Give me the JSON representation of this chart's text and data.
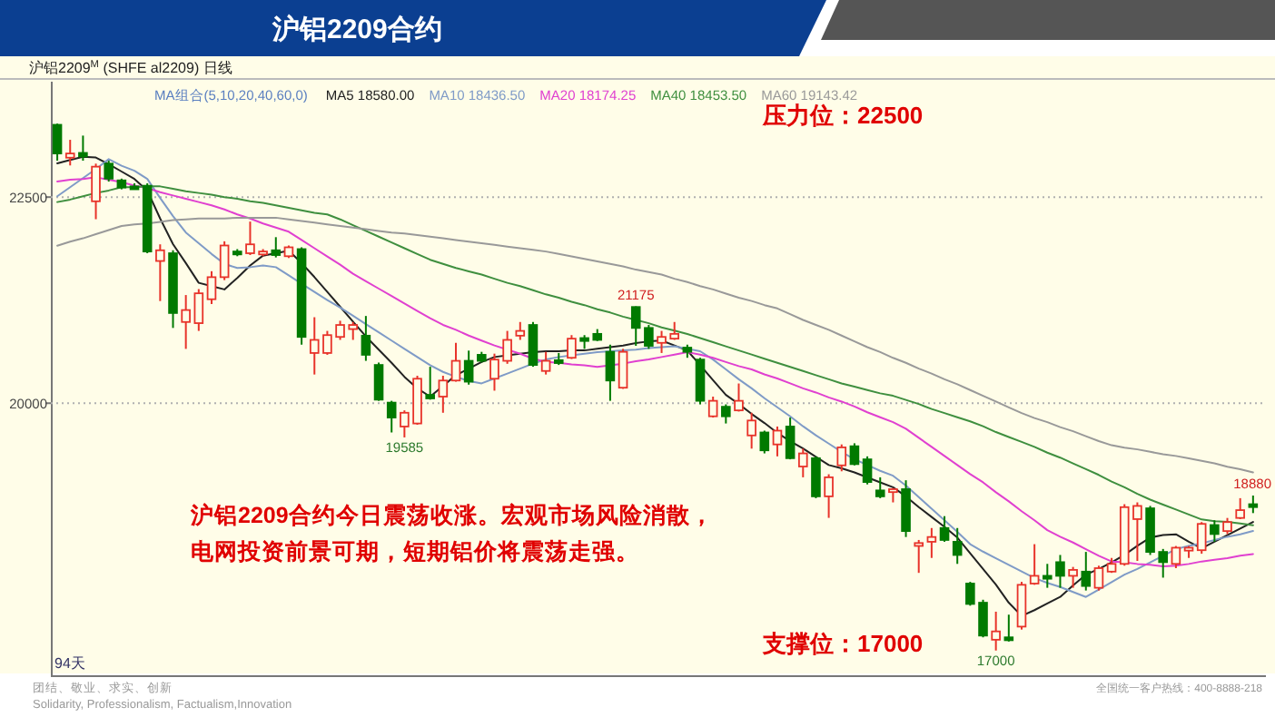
{
  "chart_data": {
    "type": "candlestick",
    "title": "沪铝2209合约",
    "subtitle": "沪铝2209$^{M}$ (SHFE al2209) 日线",
    "categories": [
      null,
      null,
      null,
      null,
      null,
      null,
      null,
      null,
      null,
      null,
      null,
      null,
      null,
      null,
      null,
      null,
      null,
      null,
      null,
      null,
      null,
      null,
      null,
      null,
      null,
      null,
      null,
      null,
      null,
      null,
      null,
      null,
      null,
      null,
      null,
      null,
      null,
      null,
      null,
      null,
      null,
      null,
      null,
      null,
      null,
      null,
      null,
      null,
      null,
      null,
      null,
      null,
      null,
      null,
      null,
      null,
      null,
      null,
      null,
      null,
      null,
      null,
      null,
      null,
      null,
      null,
      null,
      null,
      null,
      null,
      null,
      null,
      null,
      null,
      null,
      null,
      null,
      null,
      null,
      null,
      null,
      null,
      null,
      null,
      null,
      null,
      null,
      null,
      null,
      null,
      null,
      null,
      null,
      null
    ],
    "ohlc": [
      [
        23377,
        23391,
        22942,
        23029
      ],
      [
        22978,
        23195,
        22884,
        23029
      ],
      [
        23036,
        23246,
        22942,
        22993
      ],
      [
        22449,
        22906,
        22232,
        22869
      ],
      [
        22906,
        22942,
        22688,
        22724
      ],
      [
        22703,
        22724,
        22594,
        22616
      ],
      [
        22630,
        22667,
        22594,
        22616
      ],
      [
        22638,
        22667,
        21819,
        21840
      ],
      [
        21725,
        21927,
        21239,
        21855
      ],
      [
        21819,
        21855,
        20913,
        21094
      ],
      [
        20985,
        21312,
        20659,
        21130
      ],
      [
        20971,
        21384,
        20877,
        21333
      ],
      [
        21261,
        21601,
        21203,
        21529
      ],
      [
        21529,
        21964,
        21493,
        21913
      ],
      [
        21840,
        21869,
        21783,
        21819
      ],
      [
        21819,
        22203,
        21797,
        21927
      ],
      [
        21811,
        21869,
        21783,
        21840
      ],
      [
        21855,
        22014,
        21768,
        21797
      ],
      [
        21783,
        21913,
        21761,
        21891
      ],
      [
        21869,
        21891,
        20710,
        20804
      ],
      [
        20609,
        21043,
        20348,
        20768
      ],
      [
        20609,
        20877,
        20587,
        20826
      ],
      [
        20804,
        21000,
        20768,
        20949
      ],
      [
        20899,
        20985,
        20768,
        20949
      ],
      [
        20819,
        21058,
        20514,
        20587
      ],
      [
        20464,
        20493,
        20029,
        20043
      ],
      [
        20007,
        20029,
        19645,
        19826
      ],
      [
        19717,
        19913,
        19585,
        19884
      ],
      [
        19754,
        20333,
        19739,
        20297
      ],
      [
        20101,
        20442,
        20043,
        20058
      ],
      [
        20080,
        20333,
        19884,
        20275
      ],
      [
        20275,
        20732,
        20261,
        20514
      ],
      [
        20514,
        20638,
        20225,
        20261
      ],
      [
        20587,
        20623,
        20493,
        20514
      ],
      [
        20297,
        20601,
        20152,
        20529
      ],
      [
        20514,
        20877,
        20478,
        20768
      ],
      [
        20819,
        20985,
        20768,
        20877
      ],
      [
        20949,
        20985,
        20442,
        20464
      ],
      [
        20391,
        20623,
        20348,
        20514
      ],
      [
        20522,
        20609,
        20464,
        20507
      ],
      [
        20551,
        20826,
        20536,
        20783
      ],
      [
        20790,
        20826,
        20659,
        20768
      ],
      [
        20841,
        20899,
        20754,
        20768
      ],
      [
        20623,
        20710,
        20029,
        20275
      ],
      [
        20188,
        20659,
        20174,
        20623
      ],
      [
        21167,
        21175,
        20696,
        20913
      ],
      [
        20913,
        20949,
        20659,
        20696
      ],
      [
        20732,
        20877,
        20609,
        20804
      ],
      [
        20783,
        20985,
        20768,
        20841
      ],
      [
        20674,
        20710,
        20551,
        20623
      ],
      [
        20529,
        20551,
        19986,
        20029
      ],
      [
        19841,
        20080,
        19826,
        20029
      ],
      [
        19957,
        19986,
        19754,
        19841
      ],
      [
        19913,
        20239,
        19899,
        20029
      ],
      [
        19609,
        19884,
        19449,
        19790
      ],
      [
        19645,
        19667,
        19391,
        19428
      ],
      [
        19500,
        19717,
        19355,
        19667
      ],
      [
        19717,
        19826,
        19319,
        19333
      ],
      [
        19232,
        19449,
        19101,
        19391
      ],
      [
        19333,
        19355,
        18848,
        18870
      ],
      [
        18870,
        19138,
        18609,
        19101
      ],
      [
        19246,
        19500,
        19174,
        19464
      ],
      [
        19478,
        19514,
        19246,
        19261
      ],
      [
        19319,
        19355,
        19015,
        19044
      ],
      [
        18942,
        19101,
        18848,
        18870
      ],
      [
        18942,
        18971,
        18797,
        18957
      ],
      [
        18957,
        19065,
        18377,
        18449
      ],
      [
        18290,
        18341,
        17942,
        18304
      ],
      [
        18319,
        18486,
        18123,
        18377
      ],
      [
        18486,
        18630,
        18319,
        18341
      ],
      [
        18319,
        18486,
        18051,
        18159
      ],
      [
        17812,
        17833,
        17544,
        17565
      ],
      [
        17580,
        17616,
        17160,
        17181
      ],
      [
        17131,
        17471,
        17000,
        17232
      ],
      [
        17160,
        17435,
        17109,
        17145
      ],
      [
        17290,
        17833,
        17254,
        17797
      ],
      [
        17812,
        18290,
        17797,
        17906
      ],
      [
        17906,
        18051,
        17761,
        17884
      ],
      [
        18072,
        18159,
        17761,
        17906
      ],
      [
        17906,
        18014,
        17761,
        17978
      ],
      [
        17957,
        18196,
        17728,
        17783
      ],
      [
        17761,
        18029,
        17728,
        17999
      ],
      [
        17957,
        18123,
        17942,
        18051
      ],
      [
        18051,
        18775,
        18029,
        18739
      ],
      [
        18594,
        18797,
        18087,
        18754
      ],
      [
        18725,
        18754,
        18159,
        18196
      ],
      [
        18196,
        18232,
        17884,
        18072
      ],
      [
        18051,
        18268,
        17999,
        18247
      ],
      [
        18232,
        18268,
        18123,
        18247
      ],
      [
        18217,
        18558,
        18174,
        18536
      ],
      [
        18522,
        18580,
        18319,
        18413
      ],
      [
        18449,
        18608,
        18413,
        18558
      ],
      [
        18608,
        18848,
        18594,
        18703
      ],
      [
        18775,
        18880,
        18667,
        18754
      ]
    ],
    "colors": [
      "#007a00",
      "#e8332a",
      "#007a00",
      "#e8332a",
      "#007a00",
      "#007a00",
      "#007a00",
      "#007a00",
      "#e8332a",
      "#007a00",
      "#e8332a",
      "#e8332a",
      "#e8332a",
      "#e8332a",
      "#007a00",
      "#e8332a",
      "#e8332a",
      "#007a00",
      "#e8332a",
      "#007a00",
      "#e8332a",
      "#e8332a",
      "#e8332a",
      "#e8332a",
      "#007a00",
      "#007a00",
      "#007a00",
      "#e8332a",
      "#e8332a",
      "#007a00",
      "#e8332a",
      "#e8332a",
      "#007a00",
      "#007a00",
      "#e8332a",
      "#e8332a",
      "#e8332a",
      "#007a00",
      "#e8332a",
      "#007a00",
      "#e8332a",
      "#007a00",
      "#007a00",
      "#007a00",
      "#e8332a",
      "#007a00",
      "#007a00",
      "#e8332a",
      "#e8332a",
      "#007a00",
      "#007a00",
      "#e8332a",
      "#007a00",
      "#e8332a",
      "#e8332a",
      "#007a00",
      "#e8332a",
      "#007a00",
      "#e8332a",
      "#007a00",
      "#e8332a",
      "#e8332a",
      "#007a00",
      "#007a00",
      "#007a00",
      "#e8332a",
      "#007a00",
      "#e8332a",
      "#e8332a",
      "#007a00",
      "#007a00",
      "#007a00",
      "#007a00",
      "#e8332a",
      "#007a00",
      "#e8332a",
      "#e8332a",
      "#007a00",
      "#007a00",
      "#e8332a",
      "#007a00",
      "#e8332a",
      "#e8332a",
      "#e8332a",
      "#e8332a",
      "#007a00",
      "#007a00",
      "#e8332a",
      "#e8332a",
      "#e8332a",
      "#007a00",
      "#e8332a",
      "#e8332a",
      "#007a00"
    ],
    "series": [
      {
        "type": "line",
        "name": "MA5 18580.00",
        "color": "#222222",
        "values": [
          22910,
          22950,
          22990,
          22980,
          22900,
          22810,
          22720,
          22580,
          22240,
          21930,
          21700,
          21460,
          21420,
          21380,
          21520,
          21670,
          21790,
          21820,
          21850,
          21700,
          21530,
          21350,
          21170,
          20990,
          20810,
          20650,
          20490,
          20320,
          20180,
          20080,
          20210,
          20340,
          20420,
          20500,
          20560,
          20580,
          20600,
          20620,
          20630,
          20630,
          20640,
          20640,
          20660,
          20680,
          20700,
          20730,
          20750,
          20760,
          20700,
          20640,
          20460,
          20280,
          20100,
          19990,
          19870,
          19760,
          19640,
          19540,
          19450,
          19350,
          19250,
          19210,
          19160,
          19100,
          19040,
          18980,
          18870,
          18740,
          18620,
          18500,
          18370,
          18180,
          17990,
          17800,
          17580,
          17420,
          17490,
          17570,
          17650,
          17790,
          17920,
          17990,
          18070,
          18160,
          18270,
          18370,
          18400,
          18410,
          18320,
          18240,
          18320,
          18400,
          18480,
          18560
        ]
      },
      {
        "type": "line",
        "name": "MA10 18436.50",
        "color": "#7f9bc7",
        "values": [
          22510,
          22620,
          22730,
          22840,
          22960,
          22880,
          22820,
          22720,
          22490,
          22270,
          22070,
          21940,
          21810,
          21690,
          21640,
          21650,
          21670,
          21650,
          21550,
          21450,
          21350,
          21250,
          21160,
          21060,
          20960,
          20860,
          20760,
          20660,
          20560,
          20460,
          20380,
          20320,
          20270,
          20240,
          20300,
          20360,
          20420,
          20480,
          20530,
          20560,
          20580,
          20600,
          20620,
          20630,
          20640,
          20650,
          20670,
          20680,
          20690,
          20660,
          20630,
          20530,
          20410,
          20290,
          20180,
          20060,
          19950,
          19840,
          19720,
          19610,
          19510,
          19410,
          19320,
          19250,
          19180,
          19120,
          19000,
          18860,
          18720,
          18580,
          18440,
          18290,
          18200,
          18120,
          18040,
          17960,
          17880,
          17820,
          17770,
          17710,
          17650,
          17740,
          17830,
          17920,
          17990,
          18070,
          18150,
          18230,
          18270,
          18300,
          18340,
          18380,
          18410,
          18450
        ]
      },
      {
        "type": "line",
        "name": "MA20 18174.25",
        "color": "#e040d0",
        "values": [
          22690,
          22710,
          22720,
          22740,
          22710,
          22680,
          22640,
          22610,
          22560,
          22520,
          22480,
          22440,
          22400,
          22350,
          22290,
          22240,
          22180,
          22130,
          22080,
          21980,
          21880,
          21780,
          21680,
          21570,
          21480,
          21390,
          21300,
          21210,
          21120,
          21030,
          20950,
          20890,
          20820,
          20760,
          20700,
          20650,
          20600,
          20540,
          20500,
          20490,
          20470,
          20460,
          20440,
          20460,
          20480,
          20510,
          20530,
          20560,
          20590,
          20620,
          20590,
          20550,
          20500,
          20450,
          20410,
          20350,
          20300,
          20240,
          20180,
          20130,
          20070,
          20020,
          19960,
          19890,
          19830,
          19770,
          19690,
          19580,
          19470,
          19360,
          19250,
          19140,
          19040,
          18920,
          18810,
          18690,
          18580,
          18460,
          18380,
          18310,
          18230,
          18150,
          18080,
          18070,
          18050,
          18040,
          18020,
          18030,
          18050,
          18080,
          18100,
          18120,
          18150,
          18170
        ]
      },
      {
        "type": "line",
        "name": "MA40 18453.50",
        "color": "#3f8f3f",
        "values": [
          22440,
          22470,
          22510,
          22550,
          22580,
          22620,
          22620,
          22630,
          22630,
          22600,
          22570,
          22550,
          22530,
          22500,
          22480,
          22450,
          22430,
          22400,
          22370,
          22340,
          22310,
          22290,
          22230,
          22160,
          22090,
          22020,
          21950,
          21880,
          21810,
          21740,
          21690,
          21640,
          21600,
          21560,
          21510,
          21460,
          21420,
          21370,
          21320,
          21280,
          21230,
          21190,
          21140,
          21100,
          21050,
          21010,
          20970,
          20920,
          20880,
          20840,
          20790,
          20740,
          20690,
          20640,
          20590,
          20540,
          20490,
          20440,
          20390,
          20340,
          20290,
          20240,
          20200,
          20160,
          20120,
          20090,
          20040,
          19990,
          19930,
          19880,
          19830,
          19780,
          19720,
          19650,
          19590,
          19530,
          19470,
          19400,
          19340,
          19270,
          19200,
          19130,
          19050,
          18980,
          18900,
          18830,
          18770,
          18710,
          18650,
          18590,
          18570,
          18560,
          18540,
          18520
        ]
      },
      {
        "type": "line",
        "name": "MA60 19143.42",
        "color": "#999999",
        "values": [
          21910,
          21960,
          22000,
          22050,
          22100,
          22150,
          22170,
          22180,
          22200,
          22220,
          22230,
          22240,
          22240,
          22240,
          22250,
          22250,
          22250,
          22250,
          22230,
          22210,
          22190,
          22170,
          22150,
          22130,
          22110,
          22090,
          22070,
          22060,
          22040,
          22020,
          22000,
          21980,
          21960,
          21940,
          21920,
          21900,
          21880,
          21860,
          21840,
          21810,
          21780,
          21750,
          21720,
          21690,
          21660,
          21620,
          21590,
          21560,
          21510,
          21470,
          21420,
          21380,
          21330,
          21280,
          21240,
          21190,
          21150,
          21080,
          21010,
          20950,
          20890,
          20820,
          20750,
          20680,
          20620,
          20550,
          20490,
          20420,
          20360,
          20290,
          20230,
          20160,
          20090,
          20020,
          19950,
          19880,
          19820,
          19770,
          19710,
          19660,
          19600,
          19540,
          19490,
          19460,
          19440,
          19410,
          19380,
          19360,
          19330,
          19300,
          19270,
          19230,
          19200,
          19160
        ]
      }
    ],
    "ylim": [
      16700,
      23900
    ],
    "yticks": [
      20000,
      22500
    ],
    "grid": "y",
    "tick_labels": "y",
    "annotations": [
      "MA组合(5,10,20,40,60,0)",
      "压力位：22500",
      "沪铝2209合约今日震荡收涨。宏观市场风险消散，",
      "电网投资前景可期，短期铝价将震荡走强。",
      "支撑位：17000",
      "94天",
      "团结、敬业、求实、创新",
      "Solidarity, Professionalism, Factualism,Innovation",
      "全国统一客户热线：400-8888-218",
      {
        "text": "21175",
        "y": 21175
      },
      {
        "text": "19585",
        "y": 19585
      },
      {
        "text": "17000",
        "y": 17000
      },
      {
        "text": "18880",
        "y": 18880
      }
    ]
  }
}
